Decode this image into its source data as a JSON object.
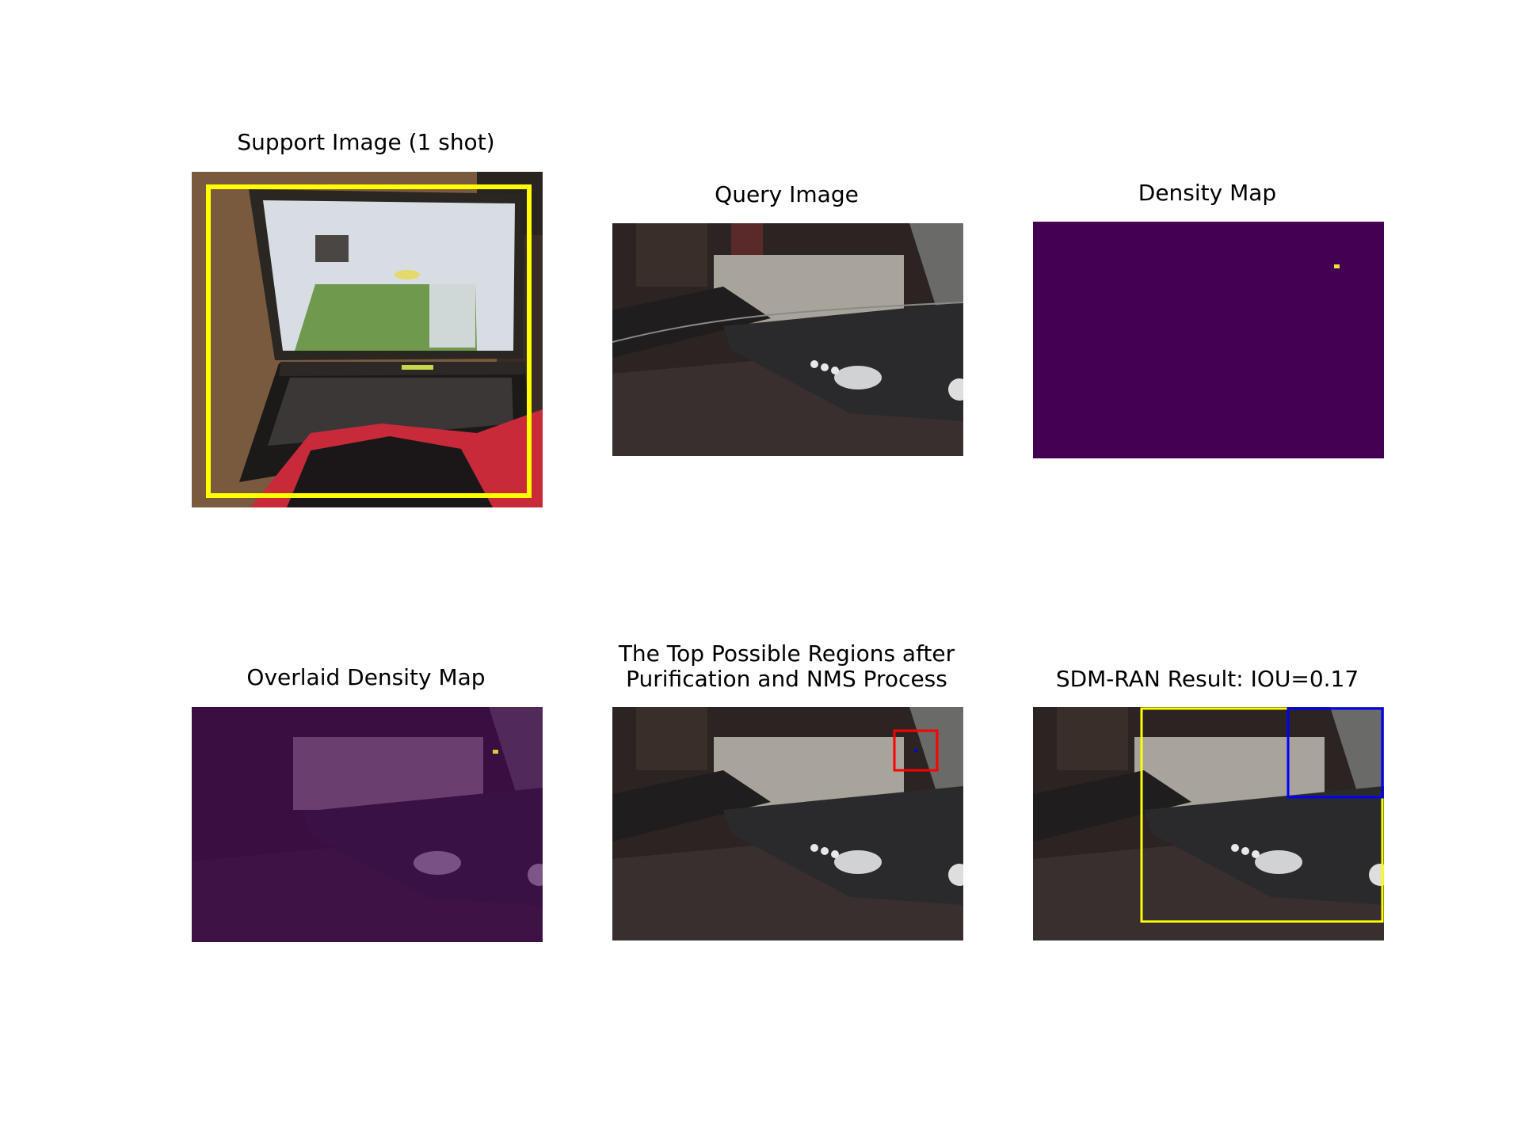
{
  "figure": {
    "panels": [
      {
        "title": "Support Image (1 shot)"
      },
      {
        "title": "Query Image"
      },
      {
        "title": "Density Map"
      },
      {
        "title": "Overlaid Density Map"
      },
      {
        "title_lines": [
          "The Top Possible Regions after",
          "Purification and NMS Process"
        ]
      },
      {
        "title": "SDM-RAN Result: IOU=0.17"
      }
    ]
  },
  "colors": {
    "support_box": "#ffff00",
    "density_background": "#440154",
    "density_peak": "#e8e43a",
    "candidate_box": "#ff0000",
    "ground_truth_box": "#ffff00",
    "prediction_box": "#0000ff"
  }
}
